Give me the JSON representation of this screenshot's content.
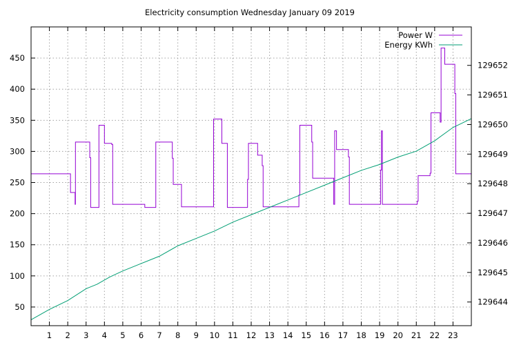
{
  "chart_data": {
    "type": "line",
    "title": "Electricity consumption Wednesday January 09 2019",
    "xlabel": "",
    "ylabel": "",
    "y2label": "",
    "xlim": [
      0,
      24
    ],
    "ylim": [
      20,
      500
    ],
    "y2lim": [
      129643.2,
      129653.3
    ],
    "x_ticks": [
      "1",
      "2",
      "3",
      "4",
      "5",
      "6",
      "7",
      "8",
      "9",
      "10",
      "11",
      "12",
      "13",
      "14",
      "15",
      "16",
      "17",
      "18",
      "19",
      "20",
      "21",
      "22",
      "23"
    ],
    "y_ticks": [
      "50",
      "100",
      "150",
      "200",
      "250",
      "300",
      "350",
      "400",
      "450"
    ],
    "y2_ticks": [
      "129644",
      "129645",
      "129646",
      "129647",
      "129648",
      "129649",
      "129650",
      "129651",
      "129652"
    ],
    "grid": true,
    "legend_position": "top-right",
    "series": [
      {
        "name": "Power W",
        "axis": "left",
        "color": "#9400d3",
        "style": "step",
        "points": [
          [
            0,
            264
          ],
          [
            2.15,
            264
          ],
          [
            2.15,
            234
          ],
          [
            2.4,
            234
          ],
          [
            2.4,
            215
          ],
          [
            2.42,
            215
          ],
          [
            2.42,
            315
          ],
          [
            3.2,
            315
          ],
          [
            3.2,
            290
          ],
          [
            3.25,
            290
          ],
          [
            3.25,
            210
          ],
          [
            3.7,
            210
          ],
          [
            3.7,
            342
          ],
          [
            4.0,
            342
          ],
          [
            4.0,
            313
          ],
          [
            4.4,
            313
          ],
          [
            4.4,
            311
          ],
          [
            4.45,
            311
          ],
          [
            4.45,
            215
          ],
          [
            6.2,
            215
          ],
          [
            6.2,
            210
          ],
          [
            6.8,
            210
          ],
          [
            6.8,
            315
          ],
          [
            7.7,
            315
          ],
          [
            7.7,
            289
          ],
          [
            7.75,
            289
          ],
          [
            7.75,
            247
          ],
          [
            8.2,
            247
          ],
          [
            8.2,
            211
          ],
          [
            9.95,
            211
          ],
          [
            9.95,
            352
          ],
          [
            10.4,
            352
          ],
          [
            10.4,
            313
          ],
          [
            10.7,
            313
          ],
          [
            10.7,
            210
          ],
          [
            11.8,
            210
          ],
          [
            11.8,
            255
          ],
          [
            11.85,
            255
          ],
          [
            11.85,
            313
          ],
          [
            12.35,
            313
          ],
          [
            12.35,
            294
          ],
          [
            12.6,
            294
          ],
          [
            12.6,
            277
          ],
          [
            12.65,
            277
          ],
          [
            12.65,
            211
          ],
          [
            14.6,
            211
          ],
          [
            14.6,
            230
          ],
          [
            14.65,
            230
          ],
          [
            14.65,
            342
          ],
          [
            15.3,
            342
          ],
          [
            15.3,
            315
          ],
          [
            15.35,
            315
          ],
          [
            15.35,
            257
          ],
          [
            16.5,
            257
          ],
          [
            16.5,
            215
          ],
          [
            16.55,
            215
          ],
          [
            16.55,
            333
          ],
          [
            16.65,
            333
          ],
          [
            16.65,
            303
          ],
          [
            17.3,
            303
          ],
          [
            17.3,
            291
          ],
          [
            17.35,
            291
          ],
          [
            17.35,
            215
          ],
          [
            19.05,
            215
          ],
          [
            19.05,
            270
          ],
          [
            19.1,
            270
          ],
          [
            19.1,
            333
          ],
          [
            19.15,
            333
          ],
          [
            19.15,
            215
          ],
          [
            21.05,
            215
          ],
          [
            21.05,
            220
          ],
          [
            21.1,
            220
          ],
          [
            21.1,
            261
          ],
          [
            21.75,
            261
          ],
          [
            21.75,
            265
          ],
          [
            21.8,
            265
          ],
          [
            21.8,
            362
          ],
          [
            22.3,
            362
          ],
          [
            22.3,
            347
          ],
          [
            22.35,
            347
          ],
          [
            22.35,
            466
          ],
          [
            22.55,
            466
          ],
          [
            22.55,
            440
          ],
          [
            23.1,
            440
          ],
          [
            23.1,
            393
          ],
          [
            23.15,
            393
          ],
          [
            23.15,
            264
          ],
          [
            24,
            264
          ]
        ]
      },
      {
        "name": "Energy KWh",
        "axis": "right",
        "color": "#009e73",
        "style": "line",
        "points": [
          [
            0,
            129643.4
          ],
          [
            1,
            129643.75
          ],
          [
            2,
            129644.05
          ],
          [
            3,
            129644.45
          ],
          [
            3.6,
            129644.6
          ],
          [
            4.3,
            129644.85
          ],
          [
            5,
            129645.05
          ],
          [
            6,
            129645.3
          ],
          [
            7,
            129645.55
          ],
          [
            8,
            129645.9
          ],
          [
            9,
            129646.15
          ],
          [
            10,
            129646.4
          ],
          [
            11,
            129646.7
          ],
          [
            12,
            129646.95
          ],
          [
            13,
            129647.2
          ],
          [
            14,
            129647.45
          ],
          [
            15,
            129647.7
          ],
          [
            16,
            129647.95
          ],
          [
            17,
            129648.2
          ],
          [
            18,
            129648.45
          ],
          [
            19,
            129648.65
          ],
          [
            20,
            129648.9
          ],
          [
            21,
            129649.1
          ],
          [
            22,
            129649.45
          ],
          [
            23,
            129649.9
          ],
          [
            24,
            129650.2
          ]
        ]
      }
    ]
  }
}
